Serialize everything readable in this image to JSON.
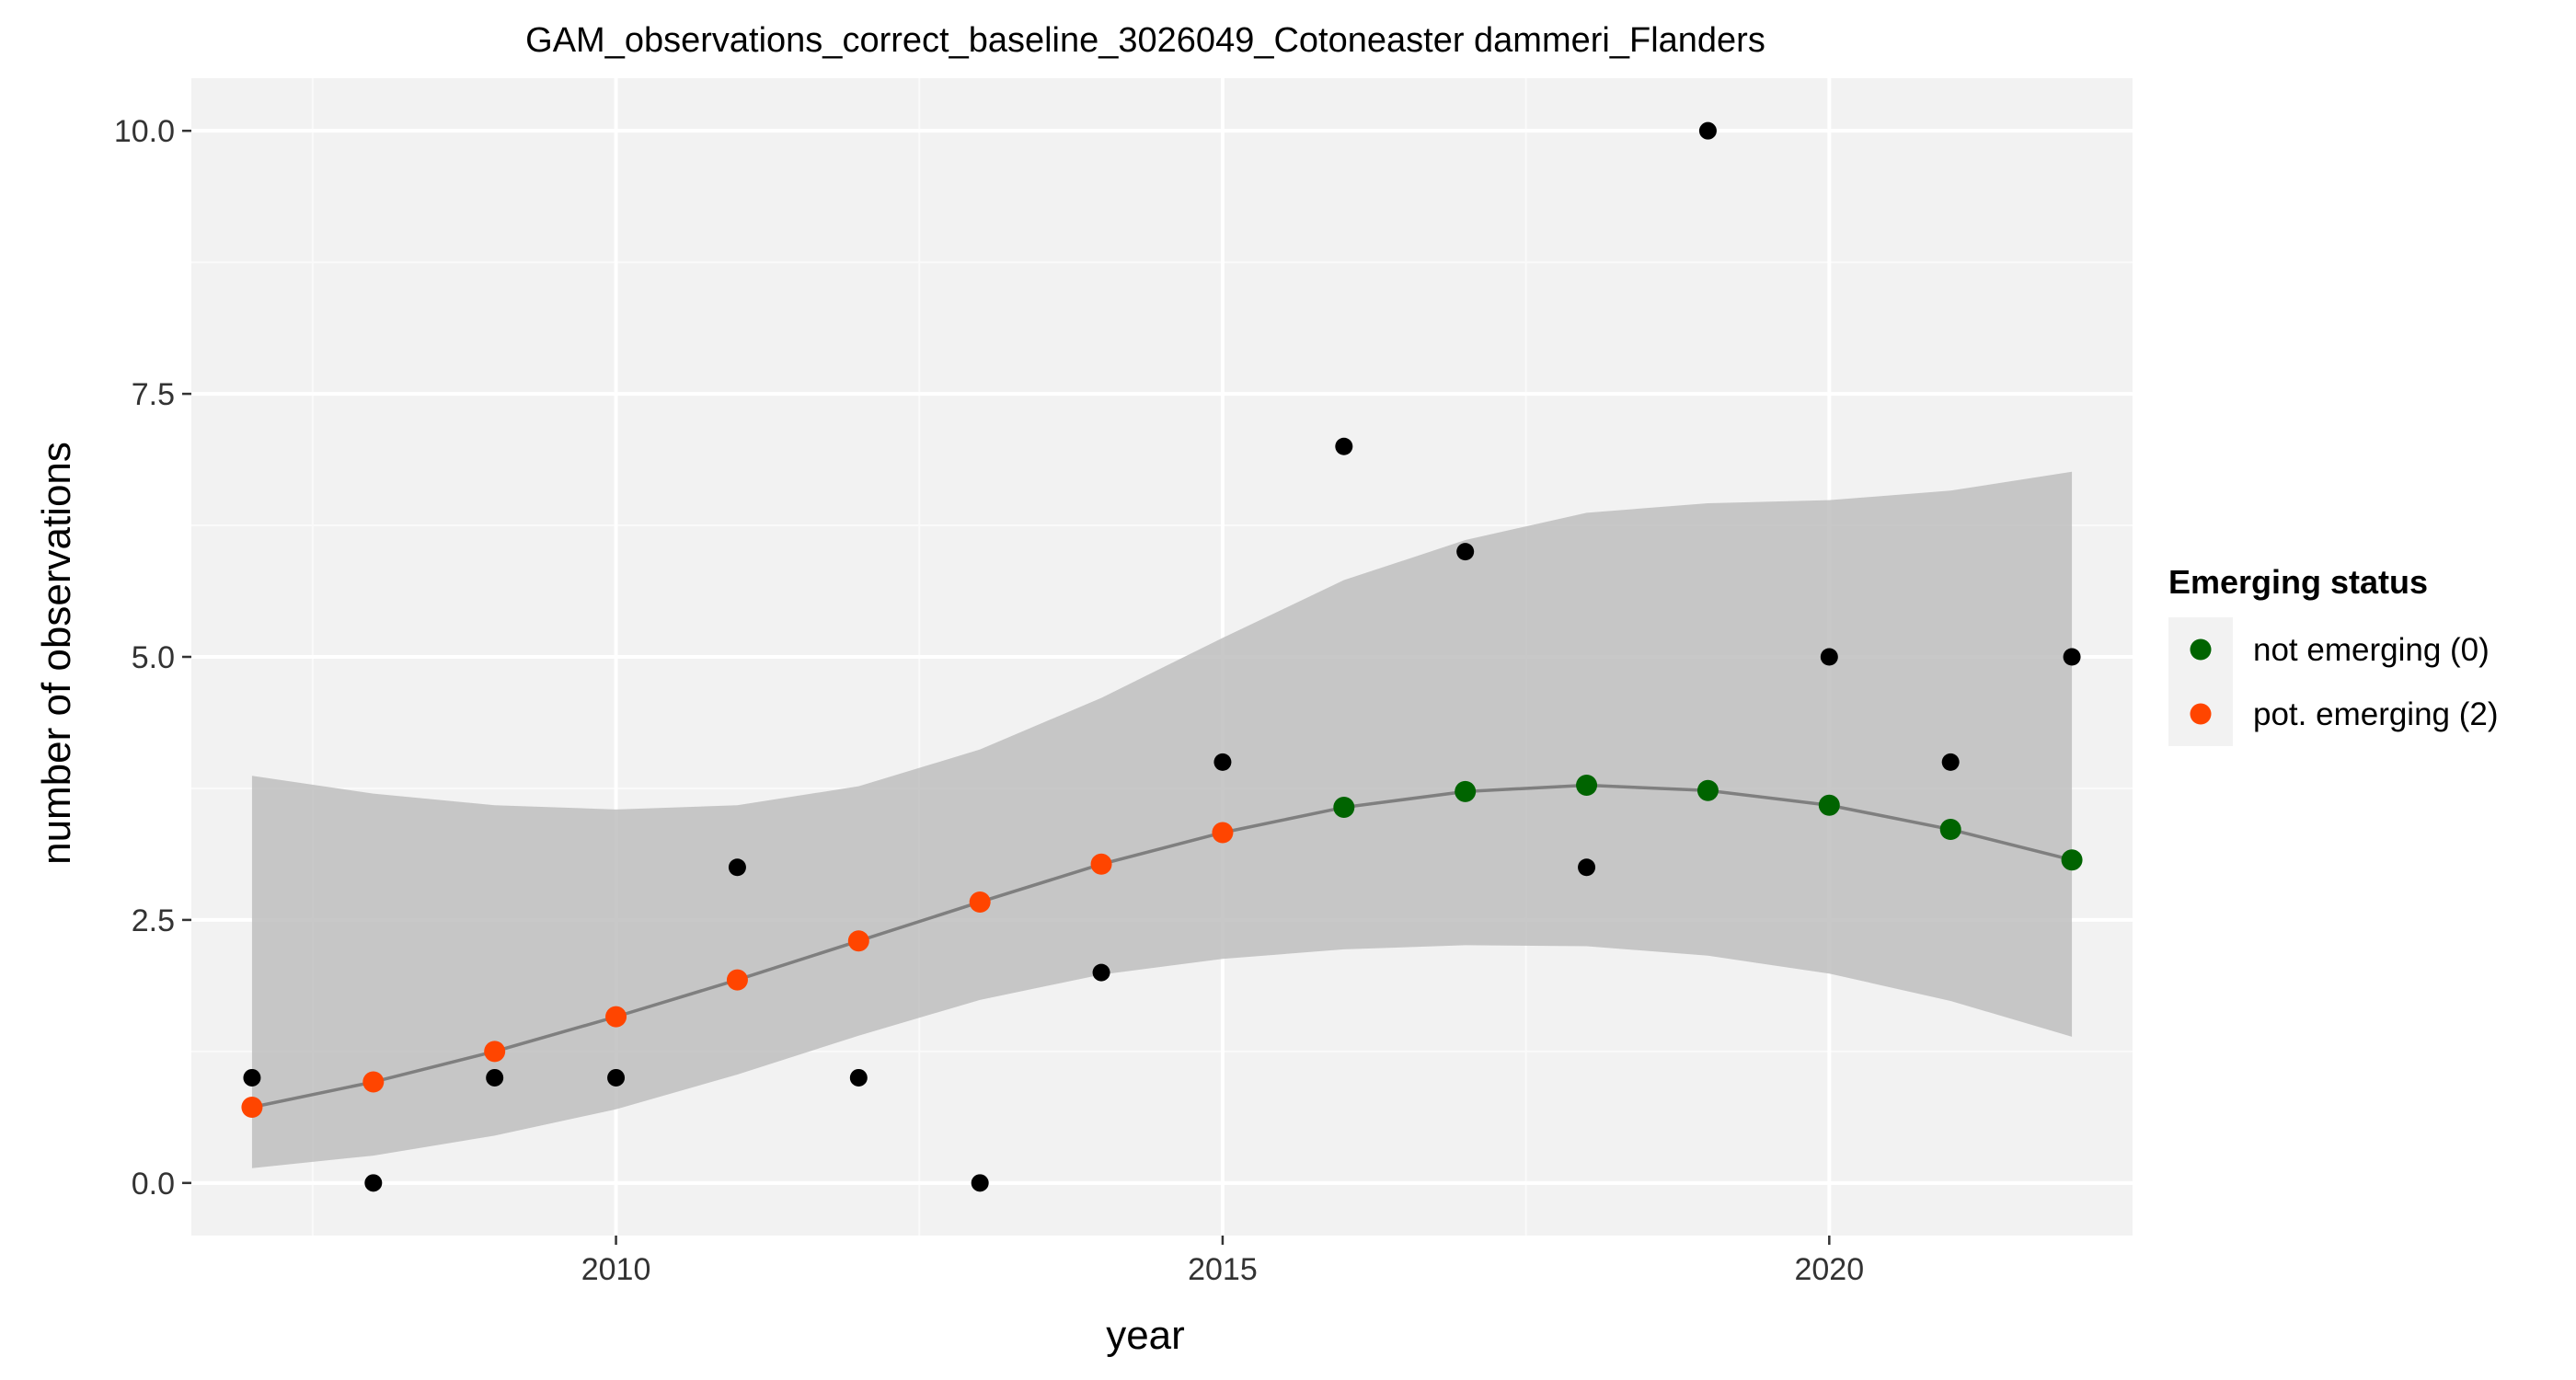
{
  "chart_data": {
    "type": "scatter",
    "title": "GAM_observations_correct_baseline_3026049_Cotoneaster dammeri_Flanders",
    "xlabel": "year",
    "ylabel": "number of observations",
    "xlim": [
      2006.5,
      2022.5
    ],
    "ylim": [
      -0.5,
      10.5
    ],
    "x_ticks": [
      2010,
      2015,
      2020
    ],
    "x_tick_labels": [
      "2010",
      "2015",
      "2020"
    ],
    "y_ticks": [
      0,
      2.5,
      5,
      7.5,
      10
    ],
    "y_tick_labels": [
      "0.0",
      "2.5",
      "5.0",
      "7.5",
      "10.0"
    ],
    "grid": true,
    "legend": {
      "title": "Emerging status",
      "position": "right",
      "entries": [
        {
          "label": "not emerging (0)",
          "color": "#006400"
        },
        {
          "label": "pot. emerging (2)",
          "color": "#FF4500"
        }
      ]
    },
    "observations": {
      "x": [
        2007,
        2008,
        2009,
        2010,
        2011,
        2012,
        2013,
        2014,
        2015,
        2016,
        2017,
        2018,
        2019,
        2020,
        2021,
        2022
      ],
      "y": [
        1,
        0,
        1,
        1,
        3,
        1,
        0,
        2,
        4,
        7,
        6,
        3,
        10,
        5,
        4,
        5
      ],
      "color": "#000000"
    },
    "fit": {
      "x": [
        2007,
        2008,
        2009,
        2010,
        2011,
        2012,
        2013,
        2014,
        2015,
        2016,
        2017,
        2018,
        2019,
        2020,
        2021,
        2022
      ],
      "y": [
        0.72,
        0.96,
        1.25,
        1.58,
        1.93,
        2.3,
        2.67,
        3.03,
        3.33,
        3.57,
        3.72,
        3.78,
        3.73,
        3.59,
        3.36,
        3.07
      ],
      "lower": [
        0.14,
        0.26,
        0.45,
        0.7,
        1.03,
        1.4,
        1.74,
        1.98,
        2.13,
        2.22,
        2.26,
        2.25,
        2.16,
        1.99,
        1.73,
        1.39
      ],
      "upper": [
        3.87,
        3.7,
        3.59,
        3.55,
        3.59,
        3.77,
        4.12,
        4.61,
        5.18,
        5.73,
        6.11,
        6.37,
        6.46,
        6.49,
        6.58,
        6.76
      ],
      "status": [
        2,
        2,
        2,
        2,
        2,
        2,
        2,
        2,
        2,
        0,
        0,
        0,
        0,
        0,
        0,
        0
      ],
      "line_color": "#7F7F7F",
      "ribbon_color": "#BEBEBE"
    },
    "status_colors": {
      "0": "#006400",
      "2": "#FF4500"
    }
  },
  "colors": {
    "panel_background": "#F2F2F2",
    "grid_major": "#FFFFFF",
    "grid_minor": "#FAFAFA"
  }
}
